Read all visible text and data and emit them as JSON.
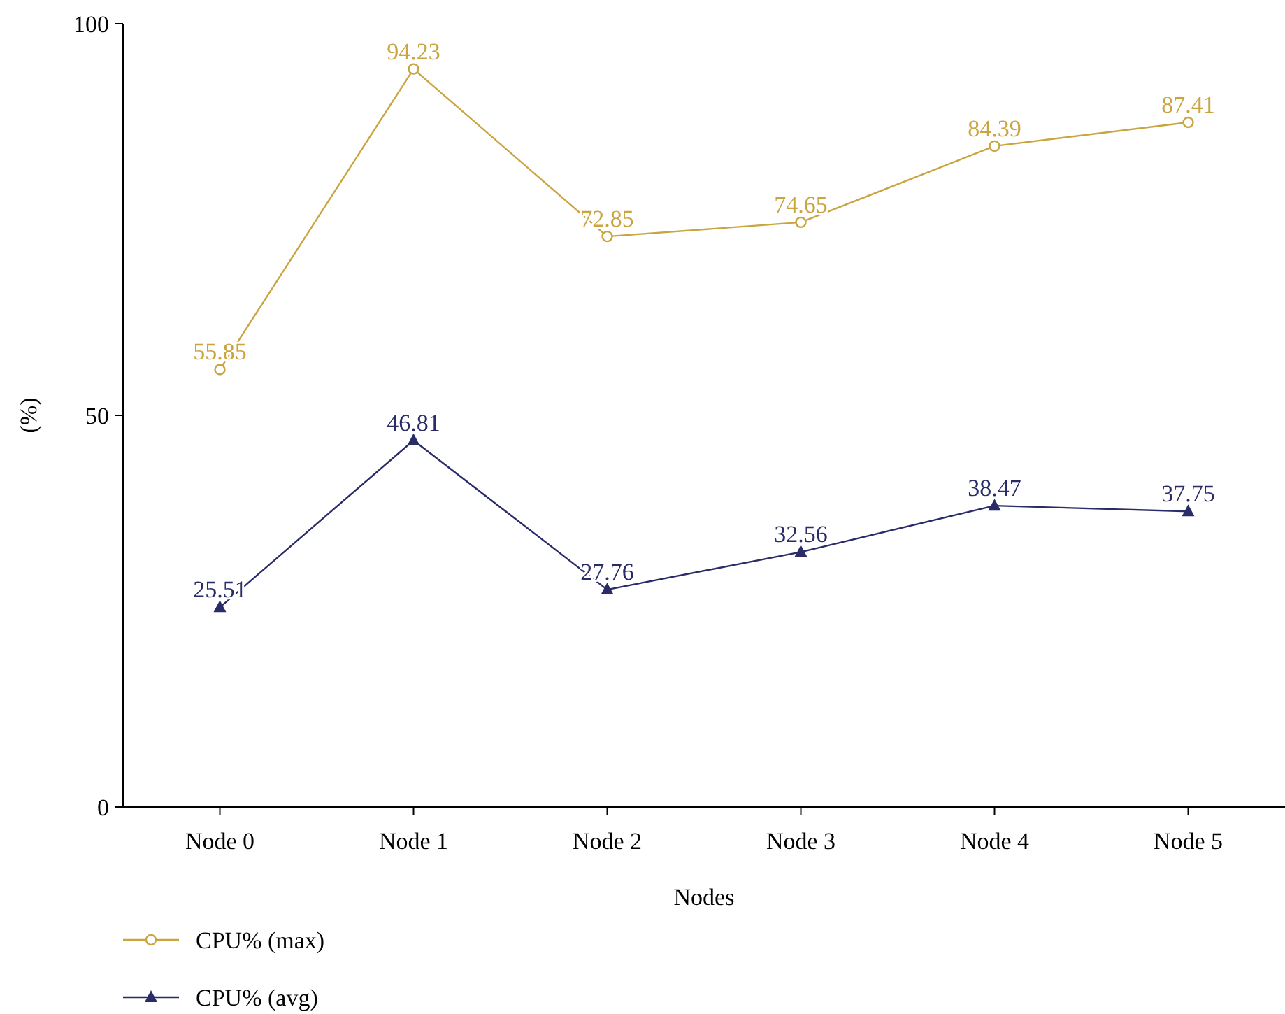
{
  "chart_data": {
    "type": "line",
    "xlabel": "Nodes",
    "ylabel": "(%)",
    "categories": [
      "Node 0",
      "Node 1",
      "Node 2",
      "Node 3",
      "Node 4",
      "Node 5"
    ],
    "series": [
      {
        "name": "CPU% (max)",
        "color": "#c9a43f",
        "marker": "circle",
        "values": [
          55.85,
          94.23,
          72.85,
          74.65,
          84.39,
          87.41
        ]
      },
      {
        "name": "CPU% (avg)",
        "color": "#2a2c68",
        "marker": "triangle",
        "values": [
          25.51,
          46.81,
          27.76,
          32.56,
          38.47,
          37.75
        ]
      }
    ],
    "ylim": [
      0,
      100
    ],
    "yticks": [
      0,
      50,
      100
    ],
    "data_labels": true,
    "legend": "bottom left",
    "grid": false
  }
}
